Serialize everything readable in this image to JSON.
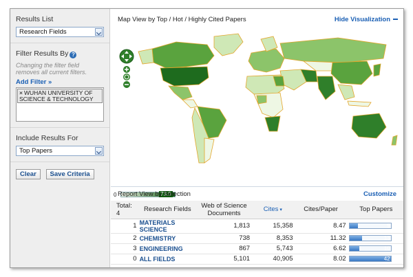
{
  "sidebar": {
    "results_list": {
      "title": "Results List",
      "selected": "Research Fields"
    },
    "filter": {
      "title": "Filter Results By",
      "hint": "Changing the filter field removes all current filters.",
      "add_filter": "Add Filter »",
      "chip": "WUHAN UNIVERSITY OF SCIENCE & TECHNOLOGY"
    },
    "include": {
      "title": "Include Results For",
      "selected": "Top Papers"
    },
    "buttons": {
      "clear": "Clear",
      "save": "Save Criteria"
    }
  },
  "visualization": {
    "title": "Map View by Top / Hot / Highly Cited Papers",
    "hide_label": "Hide Visualization",
    "legend_min": "0",
    "legend_max": "73.0",
    "colors": {
      "dark": "#1e6b1e",
      "mid": "#5aa33e",
      "light": "#cfe8b6",
      "lighter": "#eef7e4",
      "border": "#e3a52a"
    }
  },
  "report": {
    "title": "Report View by Selection",
    "customize": "Customize",
    "columns": {
      "total": "Total:",
      "total_count": "4",
      "field": "Research Fields",
      "docs": "Web of Science Documents",
      "cites": "Cites",
      "cites_per_paper": "Cites/Paper",
      "top_papers": "Top Papers"
    },
    "rows": [
      {
        "idx": "1",
        "field": "MATERIALS SCIENCE",
        "docs": "1,813",
        "cites": "15,358",
        "cpp": "8.47",
        "top": "9",
        "top_value": 9
      },
      {
        "idx": "2",
        "field": "CHEMISTRY",
        "docs": "738",
        "cites": "8,353",
        "cpp": "11.32",
        "top": "13",
        "top_value": 13
      },
      {
        "idx": "3",
        "field": "ENGINEERING",
        "docs": "867",
        "cites": "5,743",
        "cpp": "6.62",
        "top": "10",
        "top_value": 10
      },
      {
        "idx": "0",
        "field": "ALL FIELDS",
        "docs": "5,101",
        "cites": "40,905",
        "cpp": "8.02",
        "top": "42",
        "top_value": 42
      }
    ]
  }
}
